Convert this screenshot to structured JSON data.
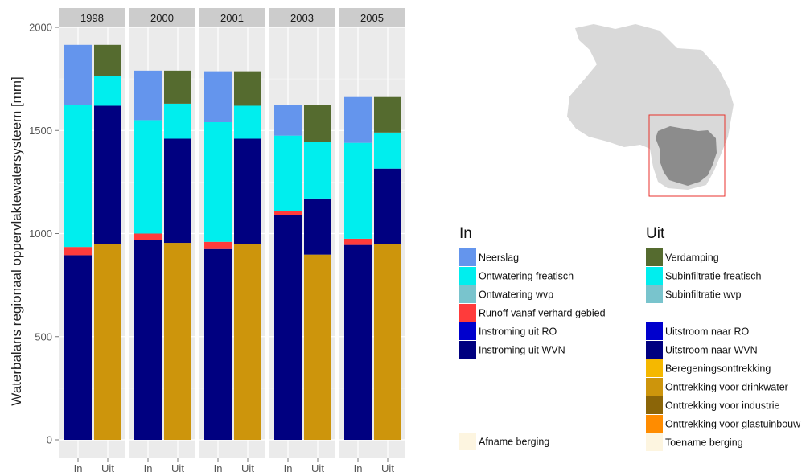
{
  "chart_data": {
    "type": "bar",
    "subtype": "stacked, faceted",
    "ylabel": "Waterbalans regionaal oppervlaktewatersysteem [mm]",
    "xlabel": "",
    "ylim": [
      0,
      2000
    ],
    "yticks": [
      0,
      500,
      1000,
      1500,
      2000
    ],
    "grid": true,
    "panel_background": "#ebebeb",
    "legend_placement": "right",
    "facets": [
      "1998",
      "2000",
      "2001",
      "2003",
      "2005"
    ],
    "categories": [
      "In",
      "Uit"
    ],
    "groups": {
      "In": {
        "title": "In",
        "items": [
          {
            "name": "Neerslag",
            "color": "#6495ed"
          },
          {
            "name": "Ontwatering freatisch",
            "color": "#00eeee"
          },
          {
            "name": "Ontwatering wvp",
            "color": "#79c4cd"
          },
          {
            "name": "Runoff vanaf verhard gebied",
            "color": "#ff3b3b"
          },
          {
            "name": "Instroming uit RO",
            "color": "#0000cd"
          },
          {
            "name": "Instroming uit WVN",
            "color": "#000080"
          },
          {
            "name": "Afname berging",
            "color": "#fdf5e0"
          }
        ]
      },
      "Uit": {
        "title": "Uit",
        "items": [
          {
            "name": "Verdamping",
            "color": "#556b2f"
          },
          {
            "name": "Subinfiltratie freatisch",
            "color": "#00eeee"
          },
          {
            "name": "Subinfiltratie wvp",
            "color": "#79c4cd"
          },
          {
            "name": "Uitstroom naar RO",
            "color": "#0000cd"
          },
          {
            "name": "Uitstroom naar WVN",
            "color": "#000080"
          },
          {
            "name": "Beregeningsonttrekking",
            "color": "#f5b800"
          },
          {
            "name": "Onttrekking voor drinkwater",
            "color": "#cd950c"
          },
          {
            "name": "Onttrekking voor industrie",
            "color": "#8b6508"
          },
          {
            "name": "Onttrekking voor glastuinbouw",
            "color": "#ff8c00"
          },
          {
            "name": "Toename berging",
            "color": "#fdf5e0"
          }
        ]
      }
    },
    "bars": {
      "1998": {
        "In": [
          {
            "name": "Instroming uit WVN",
            "value": 895
          },
          {
            "name": "Runoff vanaf verhard gebied",
            "value": 40
          },
          {
            "name": "Ontwatering freatisch",
            "value": 690
          },
          {
            "name": "Neerslag",
            "value": 290
          }
        ],
        "Uit": [
          {
            "name": "Onttrekking voor drinkwater",
            "value": 950
          },
          {
            "name": "Uitstroom naar WVN",
            "value": 670
          },
          {
            "name": "Subinfiltratie freatisch",
            "value": 145
          },
          {
            "name": "Verdamping",
            "value": 150
          }
        ]
      },
      "2000": {
        "In": [
          {
            "name": "Instroming uit WVN",
            "value": 970
          },
          {
            "name": "Runoff vanaf verhard gebied",
            "value": 30
          },
          {
            "name": "Ontwatering freatisch",
            "value": 550
          },
          {
            "name": "Neerslag",
            "value": 240
          }
        ],
        "Uit": [
          {
            "name": "Onttrekking voor drinkwater",
            "value": 955
          },
          {
            "name": "Uitstroom naar WVN",
            "value": 505
          },
          {
            "name": "Subinfiltratie freatisch",
            "value": 170
          },
          {
            "name": "Verdamping",
            "value": 160
          }
        ]
      },
      "2001": {
        "In": [
          {
            "name": "Instroming uit WVN",
            "value": 925
          },
          {
            "name": "Runoff vanaf verhard gebied",
            "value": 35
          },
          {
            "name": "Ontwatering freatisch",
            "value": 580
          },
          {
            "name": "Neerslag",
            "value": 247
          }
        ],
        "Uit": [
          {
            "name": "Onttrekking voor drinkwater",
            "value": 950
          },
          {
            "name": "Uitstroom naar WVN",
            "value": 510
          },
          {
            "name": "Subinfiltratie freatisch",
            "value": 160
          },
          {
            "name": "Verdamping",
            "value": 167
          }
        ]
      },
      "2003": {
        "In": [
          {
            "name": "Instroming uit WVN",
            "value": 1090
          },
          {
            "name": "Runoff vanaf verhard gebied",
            "value": 20
          },
          {
            "name": "Ontwatering freatisch",
            "value": 365
          },
          {
            "name": "Neerslag",
            "value": 150
          }
        ],
        "Uit": [
          {
            "name": "Onttrekking voor drinkwater",
            "value": 898
          },
          {
            "name": "Uitstroom naar WVN",
            "value": 272
          },
          {
            "name": "Subinfiltratie freatisch",
            "value": 275
          },
          {
            "name": "Verdamping",
            "value": 180
          }
        ]
      },
      "2005": {
        "In": [
          {
            "name": "Instroming uit WVN",
            "value": 945
          },
          {
            "name": "Runoff vanaf verhard gebied",
            "value": 30
          },
          {
            "name": "Ontwatering freatisch",
            "value": 465
          },
          {
            "name": "Neerslag",
            "value": 222
          }
        ],
        "Uit": [
          {
            "name": "Onttrekking voor drinkwater",
            "value": 950
          },
          {
            "name": "Uitstroom naar WVN",
            "value": 365
          },
          {
            "name": "Subinfiltratie freatisch",
            "value": 175
          },
          {
            "name": "Verdamping",
            "value": 172
          }
        ]
      }
    }
  },
  "map": {
    "region_color": "#d9d9d9",
    "highlight_color": "#8c8c8c",
    "frame_color": "#e8322c"
  }
}
